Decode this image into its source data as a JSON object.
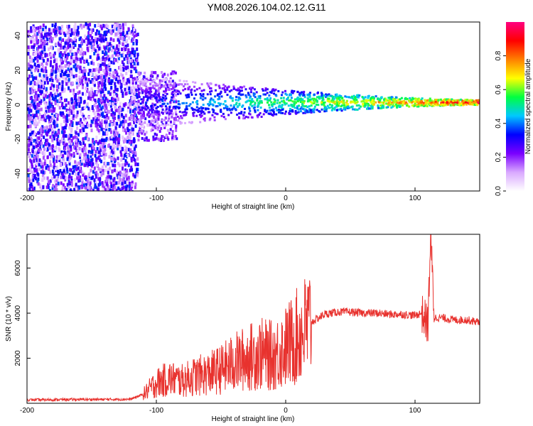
{
  "title": "YM08.2026.104.02.12.G11",
  "chart_data": [
    {
      "type": "heatmap",
      "id": "spectrogram",
      "xlabel": "Height of straight line (km)",
      "ylabel": "Frequency (Hz)",
      "xlim": [
        -200,
        150
      ],
      "ylim": [
        -50,
        48
      ],
      "xticks": [
        -200,
        -100,
        0,
        100
      ],
      "yticks": [
        -40,
        -20,
        0,
        20,
        40
      ],
      "colorbar": {
        "label": "Normalized spectral amplitude",
        "range": [
          0,
          1
        ],
        "ticks": [
          0.0,
          0.2,
          0.4,
          0.6,
          0.8
        ],
        "colors": [
          "#ffffff",
          "#d9a8ff",
          "#7a00ff",
          "#0000ff",
          "#00c8ff",
          "#00ff40",
          "#ffff00",
          "#ff8000",
          "#ff0000",
          "#ff0080"
        ]
      },
      "features": [
        {
          "name": "noise region",
          "x_range": [
            -200,
            -115
          ],
          "freq_range": [
            -50,
            48
          ],
          "amplitude": 0.25
        },
        {
          "name": "central band",
          "x_range": [
            -115,
            150
          ],
          "freq_center": 2,
          "amplitude_start": 0.35,
          "amplitude_end": 1.0
        }
      ]
    },
    {
      "type": "line",
      "id": "snr",
      "xlabel": "Height of straight line (km)",
      "ylabel": "SNR (10 * v/v)",
      "xlim": [
        -200,
        150
      ],
      "ylim": [
        0,
        7500
      ],
      "xticks": [
        -200,
        -100,
        0,
        100
      ],
      "yticks": [
        2000,
        4000,
        6000
      ],
      "color": "#e8322e",
      "series": [
        {
          "name": "SNR",
          "x": [
            -200,
            -180,
            -160,
            -140,
            -120,
            -110,
            -100,
            -90,
            -80,
            -70,
            -60,
            -50,
            -40,
            -30,
            -20,
            -10,
            0,
            10,
            20,
            30,
            40,
            50,
            60,
            70,
            80,
            90,
            100,
            105,
            110,
            112,
            115,
            120,
            130,
            140,
            150
          ],
          "values": [
            150,
            160,
            170,
            170,
            180,
            400,
            900,
            1100,
            1000,
            1200,
            1300,
            1500,
            1800,
            2000,
            2200,
            2100,
            2500,
            3000,
            3600,
            3950,
            4050,
            4050,
            4000,
            4000,
            3950,
            3950,
            3900,
            4000,
            3500,
            7400,
            3800,
            3800,
            3700,
            3700,
            3600
          ]
        }
      ]
    }
  ]
}
